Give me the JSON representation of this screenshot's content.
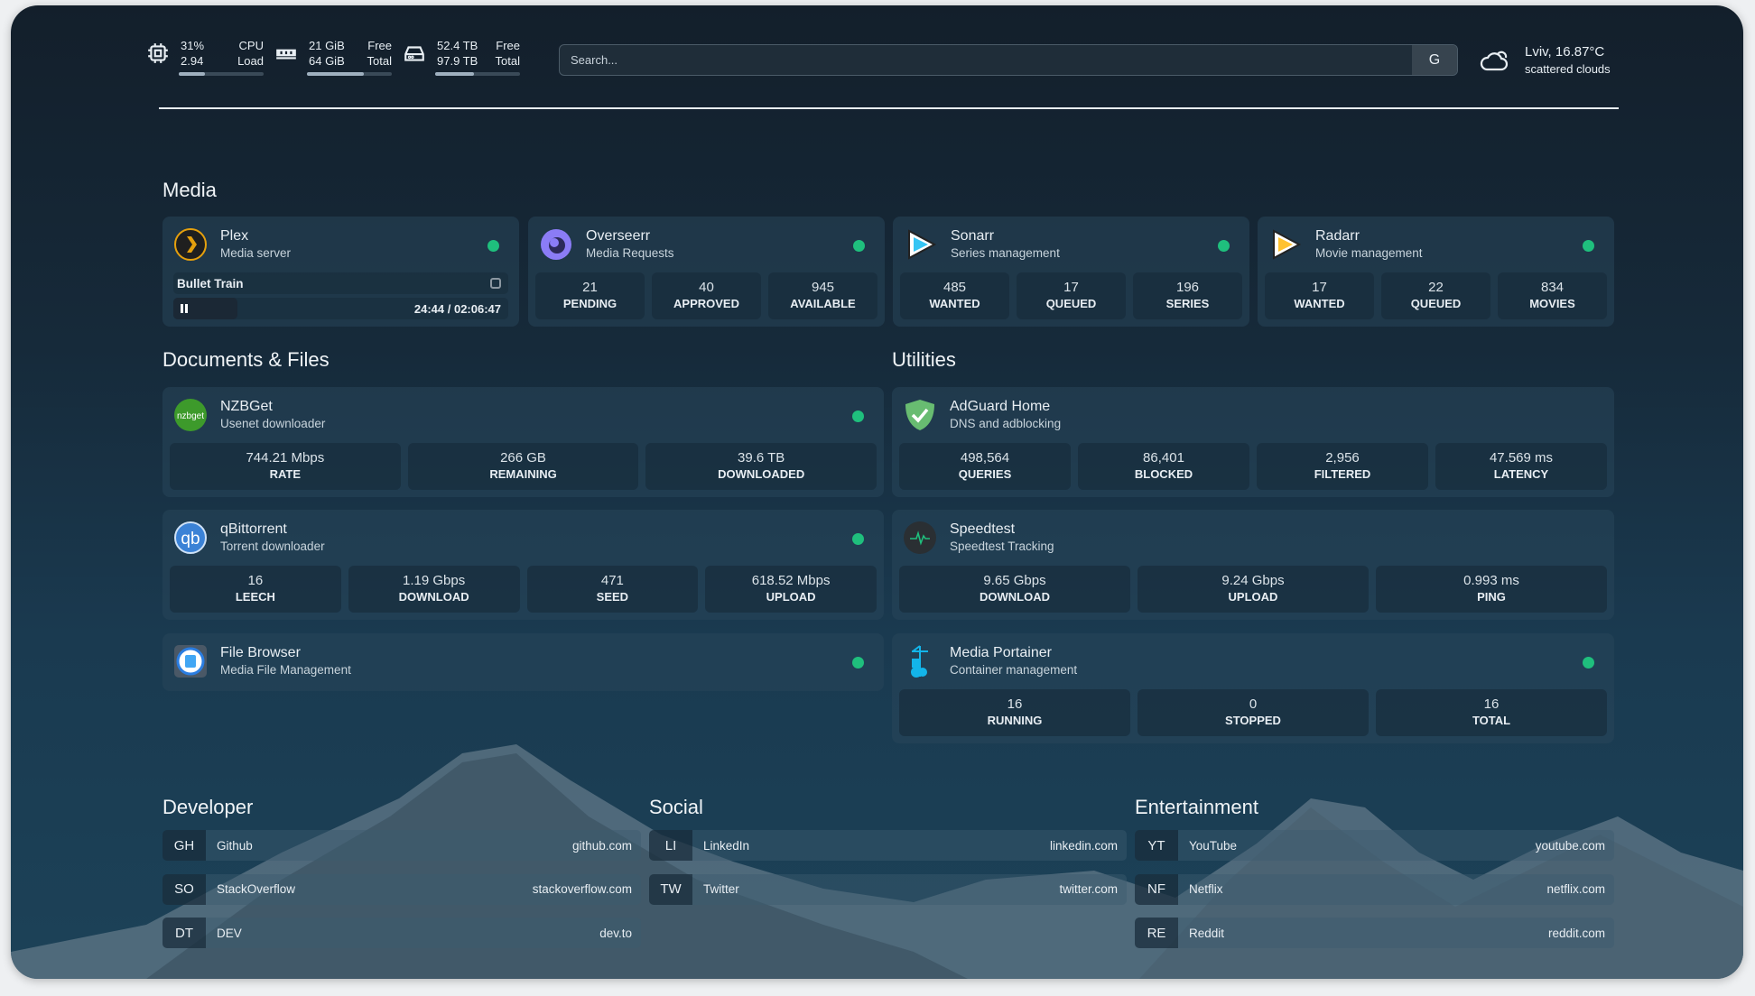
{
  "header": {
    "cpu": {
      "icon": "cpu-icon",
      "value1": "31%",
      "value2": "2.94",
      "label1": "CPU",
      "label2": "Load",
      "usage": 0.31
    },
    "memory": {
      "icon": "memory-icon",
      "value1": "21 GiB",
      "value2": "64 GiB",
      "label1": "Free",
      "label2": "Total",
      "usage": 0.67
    },
    "disk": {
      "icon": "disk-icon",
      "value1": "52.4 TB",
      "value2": "97.9 TB",
      "label1": "Free",
      "label2": "Total",
      "usage": 0.46
    },
    "search": {
      "placeholder": "Search...",
      "provider": "G"
    },
    "weather": {
      "icon": "cloud-sun-icon",
      "location": "Lviv, 16.87°C",
      "condition": "scattered clouds"
    }
  },
  "sections": {
    "media": "Media",
    "documents": "Documents & Files",
    "utilities": "Utilities",
    "developer": "Developer",
    "social": "Social",
    "entertainment": "Entertainment"
  },
  "cards": {
    "plex": {
      "name": "Plex",
      "desc": "Media server",
      "now_playing": "Bullet Train",
      "time": "24:44 / 02:06:47",
      "progress": 0.195
    },
    "overseerr": {
      "name": "Overseerr",
      "desc": "Media Requests",
      "stats": [
        {
          "v": "21",
          "l": "Pending"
        },
        {
          "v": "40",
          "l": "Approved"
        },
        {
          "v": "945",
          "l": "Available"
        }
      ]
    },
    "sonarr": {
      "name": "Sonarr",
      "desc": "Series management",
      "stats": [
        {
          "v": "485",
          "l": "Wanted"
        },
        {
          "v": "17",
          "l": "Queued"
        },
        {
          "v": "196",
          "l": "Series"
        }
      ]
    },
    "radarr": {
      "name": "Radarr",
      "desc": "Movie management",
      "stats": [
        {
          "v": "17",
          "l": "Wanted"
        },
        {
          "v": "22",
          "l": "Queued"
        },
        {
          "v": "834",
          "l": "Movies"
        }
      ]
    },
    "nzbget": {
      "name": "NZBGet",
      "desc": "Usenet downloader",
      "logo": "nzbget",
      "stats": [
        {
          "v": "744.21 Mbps",
          "l": "Rate"
        },
        {
          "v": "266 GB",
          "l": "Remaining"
        },
        {
          "v": "39.6 TB",
          "l": "Downloaded"
        }
      ]
    },
    "qbittorrent": {
      "name": "qBittorrent",
      "desc": "Torrent downloader",
      "logo": "qb",
      "stats": [
        {
          "v": "16",
          "l": "Leech"
        },
        {
          "v": "1.19 Gbps",
          "l": "Download"
        },
        {
          "v": "471",
          "l": "Seed"
        },
        {
          "v": "618.52 Mbps",
          "l": "Upload"
        }
      ]
    },
    "filebrowser": {
      "name": "File Browser",
      "desc": "Media File Management",
      "stats": []
    },
    "adguard": {
      "name": "AdGuard Home",
      "desc": "DNS and adblocking",
      "stats": [
        {
          "v": "498,564",
          "l": "Queries"
        },
        {
          "v": "86,401",
          "l": "Blocked"
        },
        {
          "v": "2,956",
          "l": "Filtered"
        },
        {
          "v": "47.569 ms",
          "l": "Latency"
        }
      ]
    },
    "speedtest": {
      "name": "Speedtest",
      "desc": "Speedtest Tracking",
      "stats": [
        {
          "v": "9.65 Gbps",
          "l": "Download"
        },
        {
          "v": "9.24 Gbps",
          "l": "Upload"
        },
        {
          "v": "0.993 ms",
          "l": "Ping"
        }
      ]
    },
    "portainer": {
      "name": "Media Portainer",
      "desc": "Container management",
      "stats": [
        {
          "v": "16",
          "l": "Running"
        },
        {
          "v": "0",
          "l": "Stopped"
        },
        {
          "v": "16",
          "l": "Total"
        }
      ]
    }
  },
  "links": {
    "developer": [
      {
        "ab": "GH",
        "name": "Github",
        "url": "github.com"
      },
      {
        "ab": "SO",
        "name": "StackOverflow",
        "url": "stackoverflow.com"
      },
      {
        "ab": "DT",
        "name": "DEV",
        "url": "dev.to"
      }
    ],
    "social": [
      {
        "ab": "LI",
        "name": "LinkedIn",
        "url": "linkedin.com"
      },
      {
        "ab": "TW",
        "name": "Twitter",
        "url": "twitter.com"
      }
    ],
    "entertainment": [
      {
        "ab": "YT",
        "name": "YouTube",
        "url": "youtube.com"
      },
      {
        "ab": "NF",
        "name": "Netflix",
        "url": "netflix.com"
      },
      {
        "ab": "RE",
        "name": "Reddit",
        "url": "reddit.com"
      }
    ]
  },
  "colors": {
    "status_ok": "#1fbf7d",
    "plex": "#e5a00d",
    "overseerr": "#8b7cf6",
    "sonarr": "#35c5f4",
    "radarr": "#ffc230",
    "nzbget": "#3d9a2b",
    "qbittorrent": "#3b82d6",
    "adguard": "#68bc71"
  }
}
